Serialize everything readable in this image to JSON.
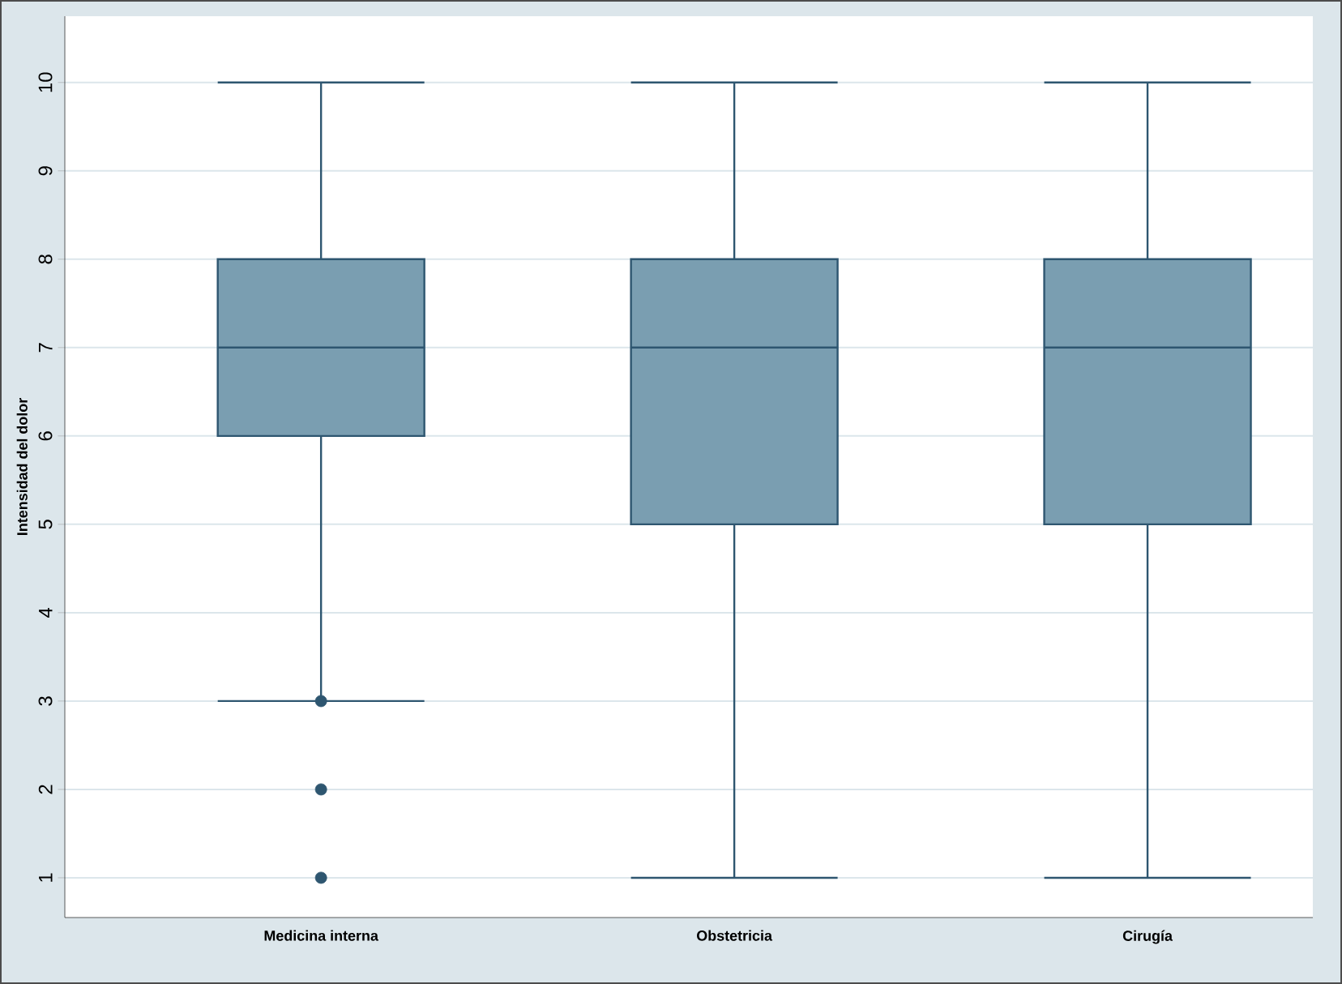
{
  "chart_data": {
    "type": "box",
    "ylabel": "Intensidad del dolor",
    "categories": [
      "Medicina interna",
      "Obstetricia",
      "Cirugía"
    ],
    "boxes": [
      {
        "low": 3,
        "q1": 6,
        "median": 7,
        "q3": 8,
        "high": 10,
        "outliers": [
          1,
          2,
          3
        ]
      },
      {
        "low": 1,
        "q1": 5,
        "median": 7,
        "q3": 8,
        "high": 10
      },
      {
        "low": 1,
        "q1": 5,
        "median": 7,
        "q3": 8,
        "high": 10
      }
    ],
    "color": "#7a9eb1",
    "ylim": [
      0.55,
      10.75
    ],
    "yticks": [
      1,
      2,
      3,
      4,
      5,
      6,
      7,
      8,
      9,
      10
    ],
    "grid": "y",
    "marker": "circle"
  }
}
